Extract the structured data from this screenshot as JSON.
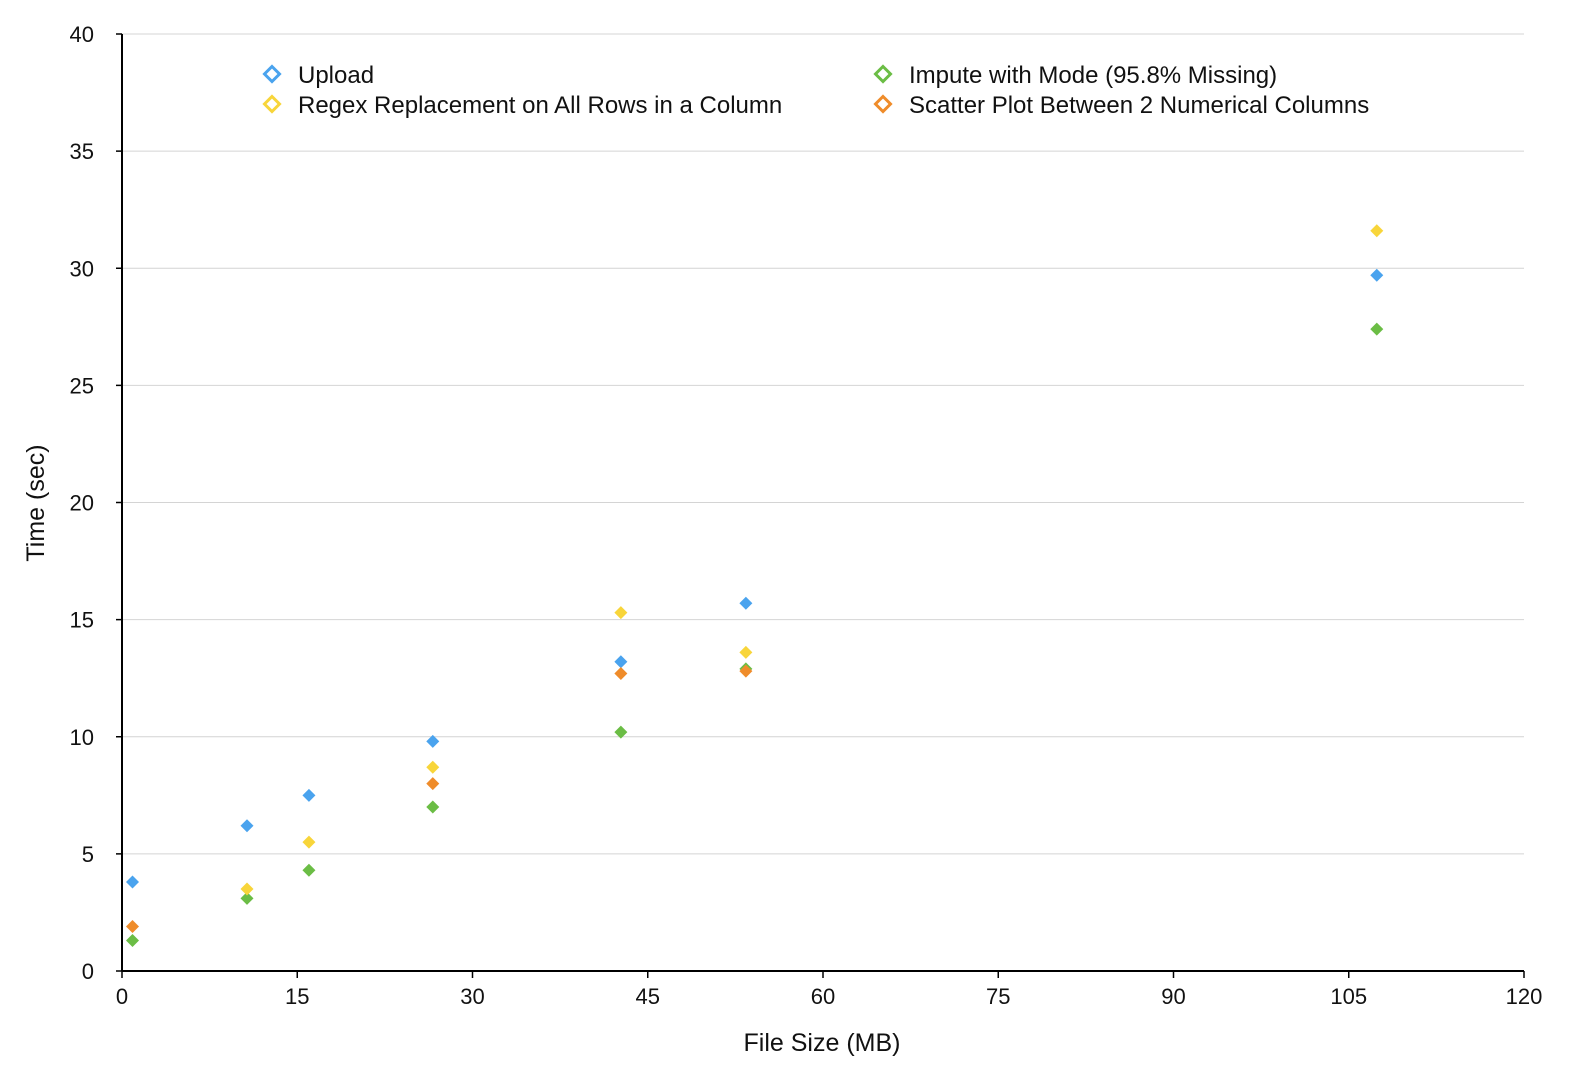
{
  "chart_data": {
    "type": "scatter",
    "title": "",
    "xlabel": "File Size (MB)",
    "ylabel": "Time (sec)",
    "xlim": [
      0,
      120
    ],
    "ylim": [
      0,
      40
    ],
    "xticks": [
      0,
      15,
      30,
      45,
      60,
      75,
      90,
      105,
      120
    ],
    "yticks": [
      0,
      5,
      10,
      15,
      20,
      25,
      30,
      35,
      40
    ],
    "grid": "horizontal",
    "legend_position": "top",
    "marker": "diamond",
    "series": [
      {
        "name": "Upload",
        "color": "#4aa3ee",
        "points": [
          [
            0.9,
            3.8
          ],
          [
            10.7,
            6.2
          ],
          [
            16.0,
            7.5
          ],
          [
            26.6,
            9.8
          ],
          [
            42.7,
            13.2
          ],
          [
            53.4,
            15.7
          ],
          [
            107.4,
            29.7
          ]
        ]
      },
      {
        "name": "Impute with Mode (95.8% Missing)",
        "color": "#6bbd45",
        "points": [
          [
            0.9,
            1.3
          ],
          [
            10.7,
            3.1
          ],
          [
            16.0,
            4.3
          ],
          [
            26.6,
            7.0
          ],
          [
            42.7,
            10.2
          ],
          [
            53.4,
            12.9
          ],
          [
            107.4,
            27.4
          ]
        ]
      },
      {
        "name": "Regex Replacement on All Rows in a Column",
        "color": "#f8d53a",
        "points": [
          [
            10.7,
            3.5
          ],
          [
            16.0,
            5.5
          ],
          [
            26.6,
            8.7
          ],
          [
            42.7,
            15.3
          ],
          [
            53.4,
            13.6
          ],
          [
            107.4,
            31.6
          ]
        ]
      },
      {
        "name": "Scatter Plot Between 2 Numerical Columns",
        "color": "#ef8c2a",
        "points": [
          [
            0.9,
            1.9
          ],
          [
            26.6,
            8.0
          ],
          [
            42.7,
            12.7
          ],
          [
            53.4,
            12.8
          ]
        ]
      }
    ]
  }
}
